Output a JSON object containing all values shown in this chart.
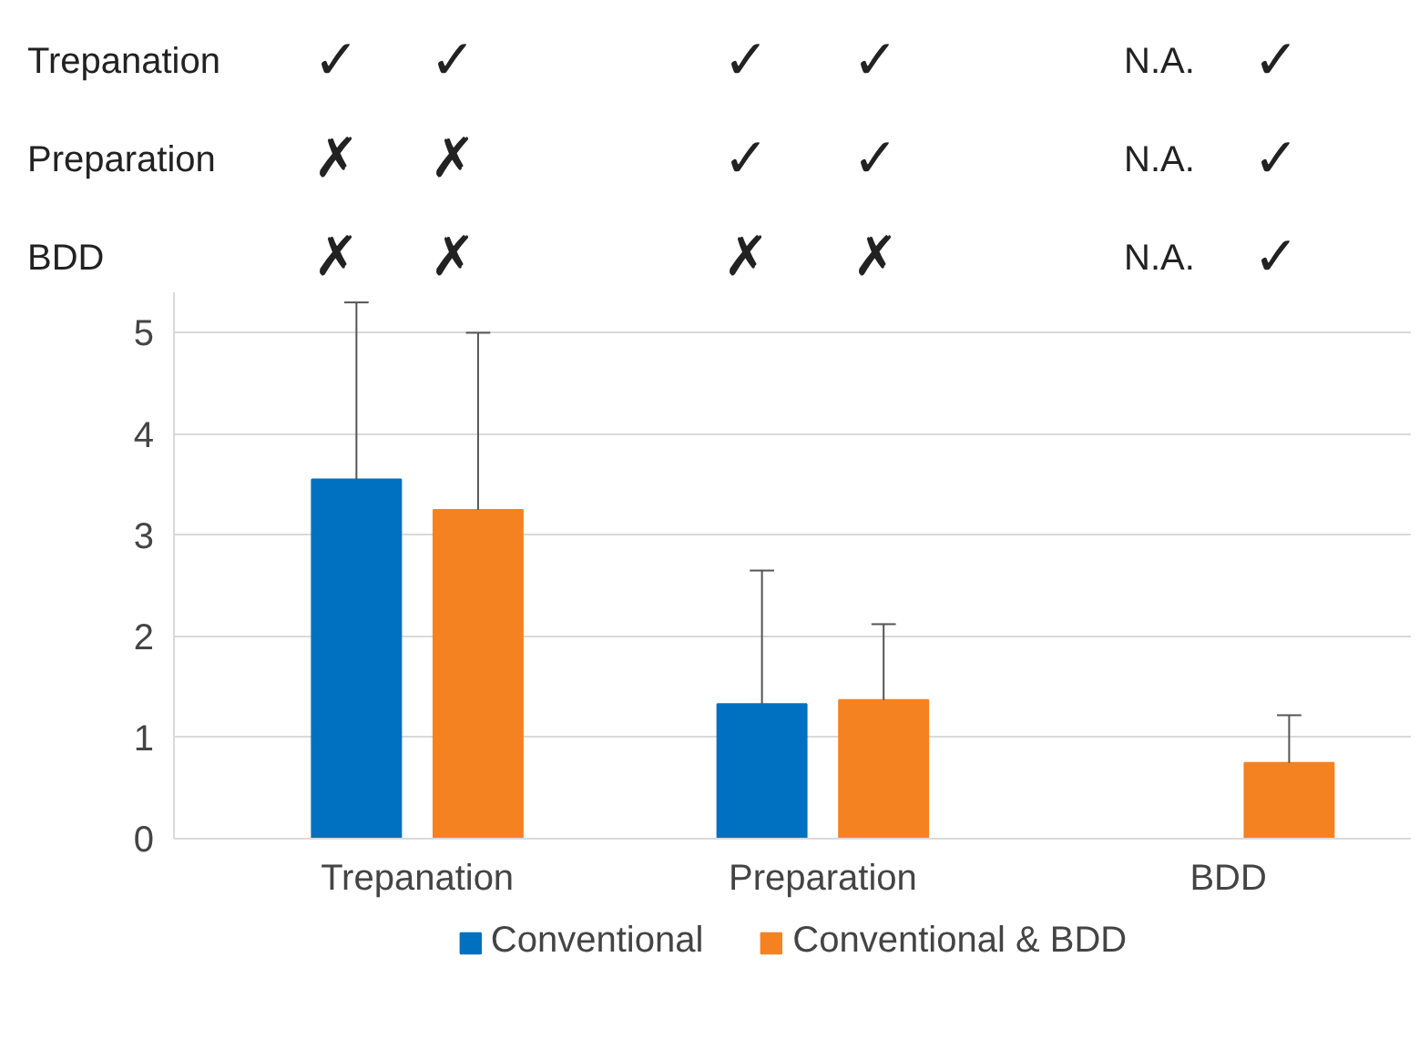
{
  "chart_data": {
    "type": "bar",
    "categories": [
      "Trepanation",
      "Preparation",
      "BDD"
    ],
    "series": [
      {
        "name": "Conventional",
        "color": "#0070c0",
        "values": [
          3.55,
          1.33,
          null
        ],
        "errors": [
          [
            3.55,
            5.3
          ],
          [
            1.33,
            2.65
          ],
          null
        ]
      },
      {
        "name": "Conventional & BDD",
        "color": "#f58220",
        "values": [
          3.25,
          1.37,
          0.75
        ],
        "errors": [
          [
            3.25,
            5.0
          ],
          [
            1.37,
            2.12
          ],
          [
            0.75,
            1.22
          ]
        ]
      }
    ],
    "ylim": [
      0,
      5.4
    ],
    "yticks": [
      0,
      1,
      2,
      3,
      4,
      5
    ],
    "grid": "y",
    "legend": "bottom",
    "annotations": [
      "Trepanation",
      "✓",
      "✓",
      "✓",
      "✓",
      "N.A.",
      "✓",
      "Preparation",
      "✗",
      "✗",
      "✓",
      "✓",
      "N.A.",
      "✓",
      "BDD",
      "✗",
      "✗",
      "✗",
      "✗",
      "N.A.",
      "✓"
    ]
  }
}
